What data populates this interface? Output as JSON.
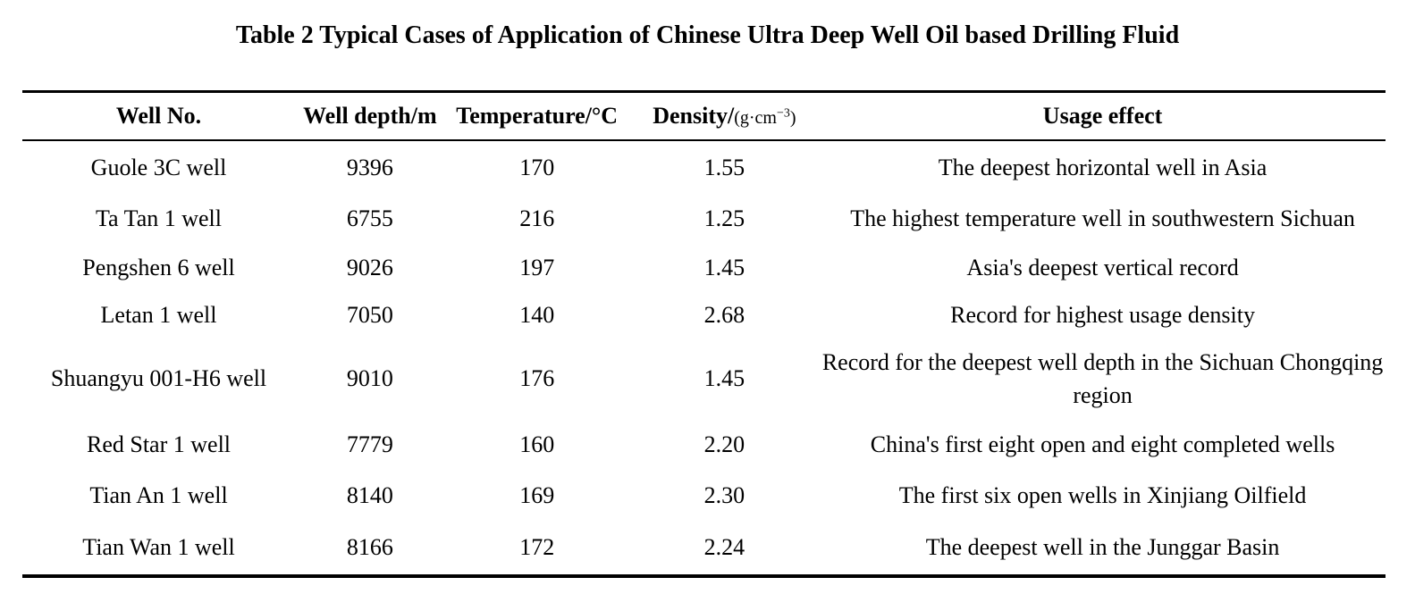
{
  "title": "Table 2 Typical Cases of Application of Chinese Ultra Deep Well Oil based Drilling Fluid",
  "table": {
    "headers": {
      "well_no": "Well No.",
      "depth": "Well depth/m",
      "temperature": "Temperature/°C",
      "density_label": "Density/",
      "density_unit_pre": "(g·cm",
      "density_unit_exp": "−3",
      "density_unit_close": ")",
      "usage": "Usage effect"
    },
    "rows": [
      {
        "well_no": "Guole 3C well",
        "depth": "9396",
        "temperature": "170",
        "density": "1.55",
        "usage": "The deepest horizontal well in Asia"
      },
      {
        "well_no": "Ta Tan 1 well",
        "depth": "6755",
        "temperature": "216",
        "density": "1.25",
        "usage": "The highest temperature well in southwestern Sichuan"
      },
      {
        "well_no": "Pengshen 6 well",
        "depth": "9026",
        "temperature": "197",
        "density": "1.45",
        "usage": "Asia's deepest vertical record"
      },
      {
        "well_no": "Letan 1 well",
        "depth": "7050",
        "temperature": "140",
        "density": "2.68",
        "usage": "Record for highest usage density"
      },
      {
        "well_no": "Shuangyu 001-H6 well",
        "depth": "9010",
        "temperature": "176",
        "density": "1.45",
        "usage": "Record for the deepest well depth in the Sichuan Chongqing region"
      },
      {
        "well_no": "Red Star 1 well",
        "depth": "7779",
        "temperature": "160",
        "density": "2.20",
        "usage": "China's first eight open and eight completed wells"
      },
      {
        "well_no": "Tian An 1 well",
        "depth": "8140",
        "temperature": "169",
        "density": "2.30",
        "usage": "The first six open wells in Xinjiang Oilfield"
      },
      {
        "well_no": "Tian Wan 1 well",
        "depth": "8166",
        "temperature": "172",
        "density": "2.24",
        "usage": "The deepest well in the Junggar Basin"
      }
    ]
  }
}
